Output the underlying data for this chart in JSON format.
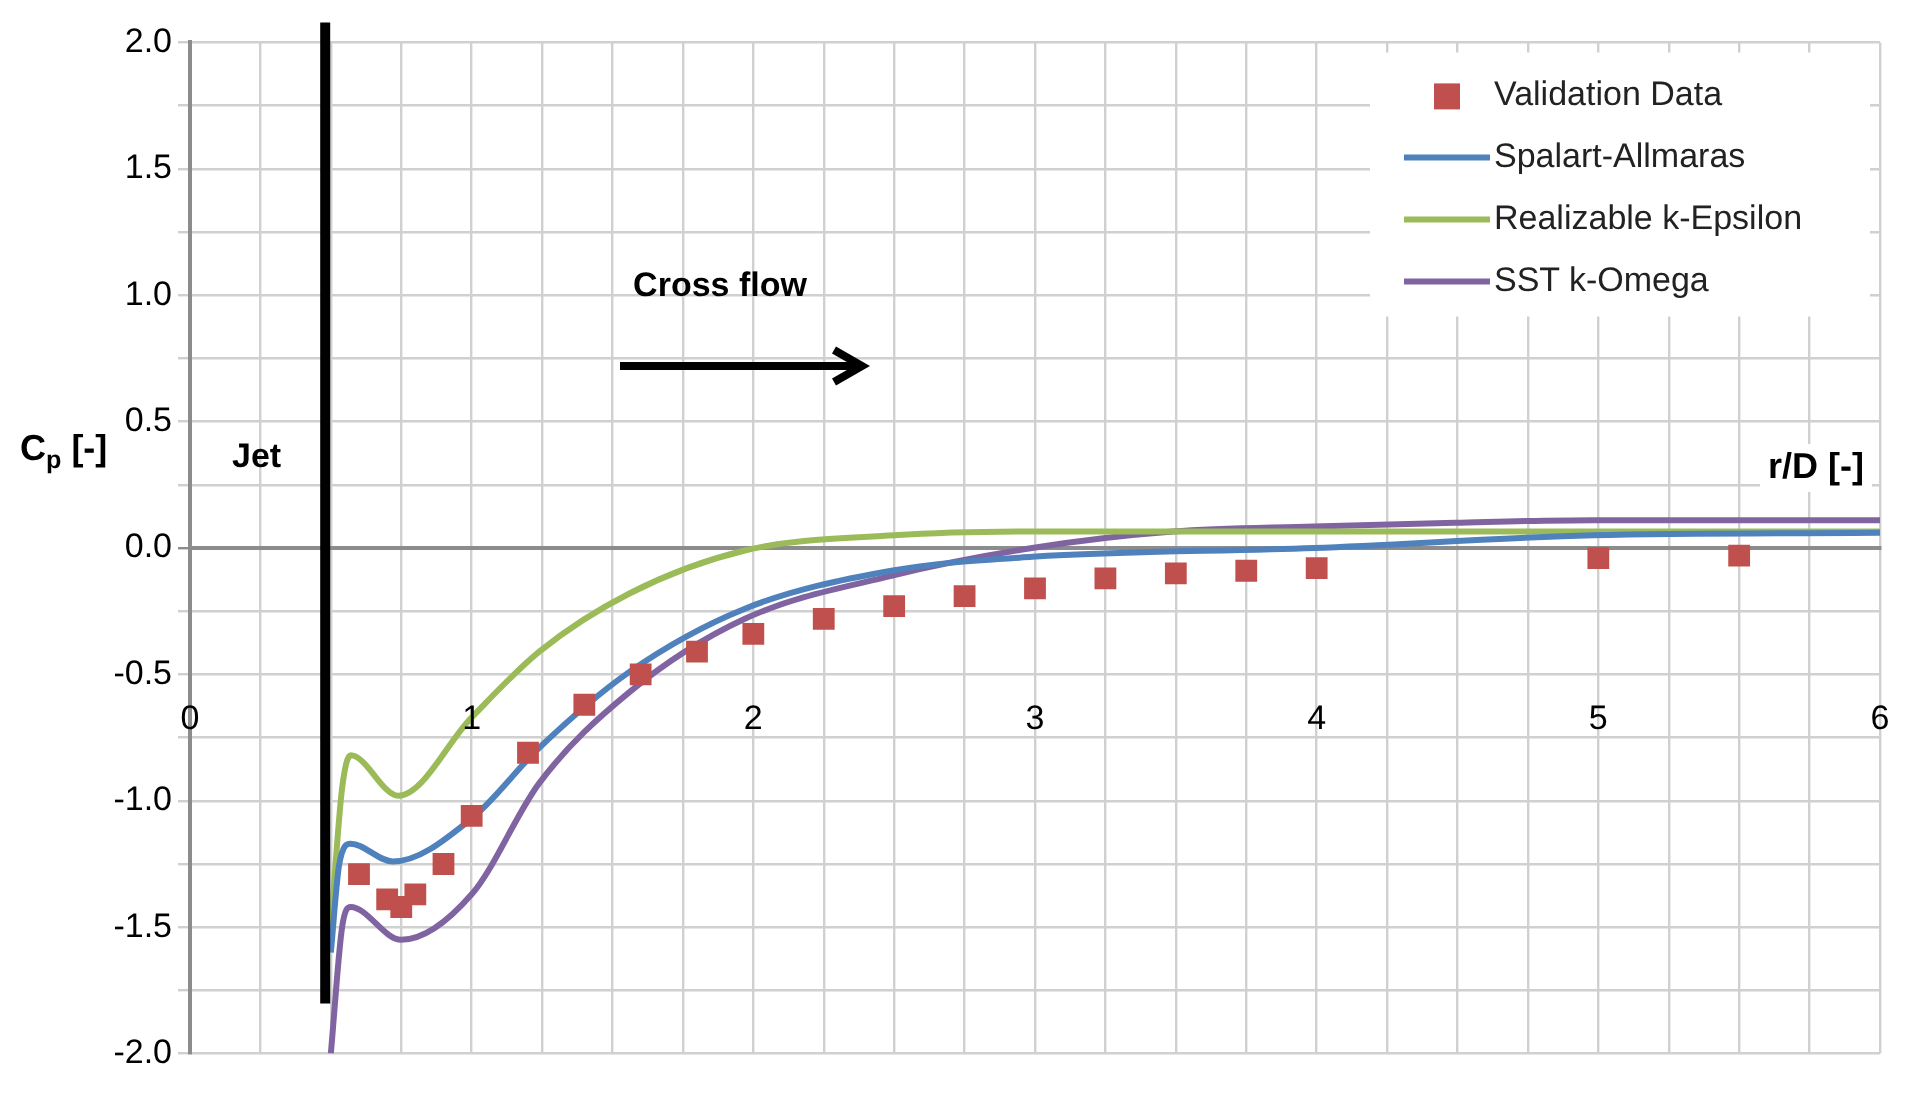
{
  "chart_data": {
    "type": "line",
    "xlabel": "r/D [-]",
    "ylabel": "C$_{p}$ [-]",
    "xlim": [
      0,
      6
    ],
    "ylim": [
      -2,
      2
    ],
    "xticks": [
      0,
      {
        "value": 0.25,
        "label": null
      },
      {
        "value": 0.5,
        "label": null
      },
      {
        "value": 0.75,
        "label": null
      },
      1,
      {
        "value": 1.25,
        "label": null
      },
      {
        "value": 1.5,
        "label": null
      },
      {
        "value": 1.75,
        "label": null
      },
      2,
      {
        "value": 2.25,
        "label": null
      },
      {
        "value": 2.5,
        "label": null
      },
      {
        "value": 2.75,
        "label": null
      },
      3,
      {
        "value": 3.25,
        "label": null
      },
      {
        "value": 3.5,
        "label": null
      },
      {
        "value": 3.75,
        "label": null
      },
      4,
      {
        "value": 4.25,
        "label": null
      },
      {
        "value": 4.5,
        "label": null
      },
      {
        "value": 4.75,
        "label": null
      },
      5,
      {
        "value": 5.25,
        "label": null
      },
      {
        "value": 5.5,
        "label": null
      },
      {
        "value": 5.75,
        "label": null
      },
      6
    ],
    "yticks": [
      {
        "value": -2,
        "label": "-2.0"
      },
      {
        "value": -1.75,
        "label": null
      },
      {
        "value": -1.5,
        "label": "-1.5"
      },
      {
        "value": -1.25,
        "label": null
      },
      {
        "value": -1,
        "label": "-1.0"
      },
      {
        "value": -0.75,
        "label": null
      },
      {
        "value": -0.5,
        "label": "-0.5"
      },
      {
        "value": -0.25,
        "label": null
      },
      {
        "value": 0,
        "label": "0.0"
      },
      {
        "value": 0.25,
        "label": null
      },
      {
        "value": 0.5,
        "label": "0.5"
      },
      {
        "value": 0.75,
        "label": null
      },
      {
        "value": 1,
        "label": "1.0"
      },
      {
        "value": 1.25,
        "label": null
      },
      {
        "value": 1.5,
        "label": "1.5"
      },
      {
        "value": 1.75,
        "label": null
      },
      {
        "value": 2,
        "label": "2.0"
      }
    ],
    "grid": true,
    "legend": "top right",
    "annotations": [
      "Cross flow"
    ],
    "ref_lines": [
      {
        "axis": "x",
        "value": 0.48,
        "label": "Jet",
        "color": "#000000"
      }
    ],
    "series": [
      {
        "name": "Validation Data",
        "type": "scatter",
        "marker": "square",
        "color": "#c0504d",
        "x": [
          0.6,
          0.7,
          0.75,
          0.8,
          0.9,
          1.0,
          1.2,
          1.4,
          1.6,
          1.8,
          2.0,
          2.25,
          2.5,
          2.75,
          3.0,
          3.25,
          3.5,
          3.75,
          4.0,
          5.0,
          5.5
        ],
        "values": [
          -1.29,
          -1.39,
          -1.42,
          -1.37,
          -1.25,
          -1.06,
          -0.81,
          -0.62,
          -0.5,
          -0.41,
          -0.34,
          -0.28,
          -0.23,
          -0.19,
          -0.16,
          -0.12,
          -0.1,
          -0.09,
          -0.08,
          -0.04,
          -0.03
        ]
      },
      {
        "name": "Spalart-Allmaras",
        "type": "line",
        "marker": "none",
        "color": "#4f81bd",
        "x": [
          0.5,
          0.53,
          0.57,
          0.72,
          1.0,
          1.24,
          1.56,
          1.97,
          2.49,
          2.99,
          3.99,
          4.98,
          6.0
        ],
        "values": [
          -1.6,
          -1.25,
          -1.17,
          -1.24,
          -1.07,
          -0.79,
          -0.49,
          -0.24,
          -0.09,
          -0.035,
          0.0,
          0.05,
          0.06
        ]
      },
      {
        "name": "Realizable k-Epsilon",
        "type": "line",
        "marker": "none",
        "color": "#9bbb59",
        "x": [
          0.5,
          0.54,
          0.57,
          0.74,
          1.0,
          1.24,
          1.56,
          1.97,
          2.5,
          3.0,
          4.0,
          5.0,
          6.0
        ],
        "values": [
          -1.5,
          -0.95,
          -0.82,
          -0.98,
          -0.67,
          -0.41,
          -0.18,
          -0.01,
          0.05,
          0.065,
          0.065,
          0.065,
          0.065
        ]
      },
      {
        "name": "SST k-Omega",
        "type": "line",
        "marker": "none",
        "color": "#8064a2",
        "x": [
          0.5,
          0.54,
          0.57,
          0.75,
          1.0,
          1.24,
          1.56,
          1.97,
          2.49,
          2.99,
          3.49,
          3.99,
          4.49,
          4.98,
          6.0
        ],
        "values": [
          -2.0,
          -1.5,
          -1.42,
          -1.55,
          -1.37,
          -0.93,
          -0.57,
          -0.28,
          -0.11,
          0.0,
          0.065,
          0.085,
          0.1,
          0.11,
          0.11
        ]
      }
    ]
  }
}
